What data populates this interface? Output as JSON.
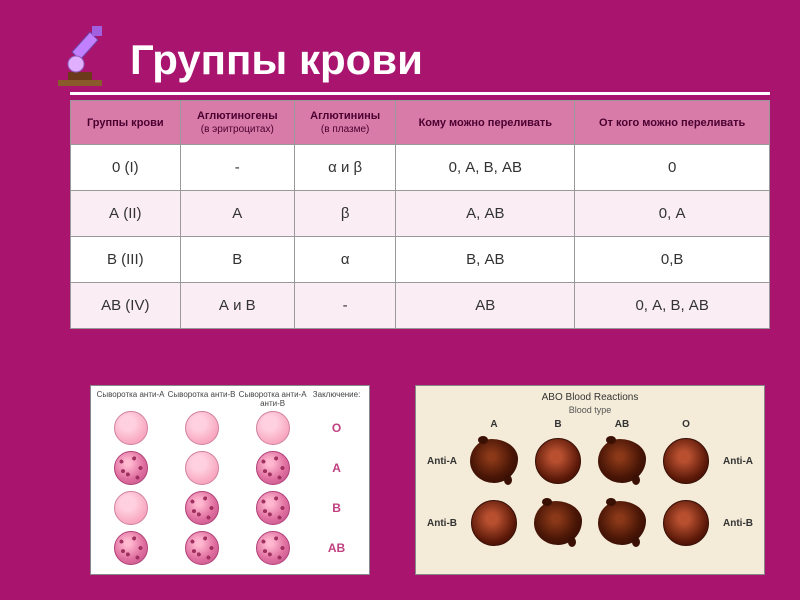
{
  "title": "Группы крови",
  "colors": {
    "page_bg": "#a8146e",
    "title_text": "#ffffff",
    "header_bg": "#d97ba8",
    "header_text": "#4a0030",
    "row_even_bg": "#faeef4",
    "row_odd_bg": "#ffffff",
    "cell_text": "#333333",
    "border": "#999999",
    "leftfig_smooth": "#f8a8c0",
    "leftfig_agg": "#c05088",
    "rightfig_bg": "#f4ecd8",
    "blot_smooth": "#5a1808",
    "blot_agg": "#4a1606"
  },
  "table": {
    "headers": {
      "c1": "Группы крови",
      "c2": "Аглютиногены",
      "c2sub": "(в эритроцитах)",
      "c3": "Аглютинины",
      "c3sub": "(в плазме)",
      "c4": "Кому можно переливать",
      "c5": "От кого можно переливать"
    },
    "rows": [
      {
        "group": "0 (I)",
        "agglutinogens": "-",
        "agglutinins": "α  и  β",
        "donate_to": "0, А, В, АВ",
        "receive_from": "0"
      },
      {
        "group": "А (II)",
        "agglutinogens": "А",
        "agglutinins": "β",
        "donate_to": "А, АВ",
        "receive_from": "0, А"
      },
      {
        "group": "В (III)",
        "agglutinogens": "В",
        "agglutinins": "α",
        "donate_to": "В, АВ",
        "receive_from": "0,В"
      },
      {
        "group": "АВ (IV)",
        "agglutinogens": "А и В",
        "agglutinins": "-",
        "donate_to": "АВ",
        "receive_from": "0, А, В, АВ"
      }
    ]
  },
  "left_figure": {
    "headers": {
      "h1": "Сыворотка анти-А",
      "h2": "Сыворотка анти-В",
      "h3": "Сыворотка анти-А анти-В",
      "h4": "Заключение:"
    },
    "rows": [
      {
        "pattern": [
          "smooth",
          "smooth",
          "smooth"
        ],
        "label": "O"
      },
      {
        "pattern": [
          "agg",
          "smooth",
          "agg"
        ],
        "label": "А"
      },
      {
        "pattern": [
          "smooth",
          "agg",
          "agg"
        ],
        "label": "В"
      },
      {
        "pattern": [
          "agg",
          "agg",
          "agg"
        ],
        "label": "АВ"
      }
    ]
  },
  "right_figure": {
    "title": "ABO Blood Reactions",
    "subtitle": "Blood type",
    "col_headers": [
      "A",
      "B",
      "AB",
      "O"
    ],
    "row_labels_left": [
      "Anti-A",
      "Anti-B"
    ],
    "row_labels_right": [
      "Anti-A",
      "Anti-B"
    ],
    "rows": [
      {
        "pattern": [
          "agg",
          "smooth",
          "agg",
          "smooth"
        ]
      },
      {
        "pattern": [
          "smooth",
          "agg",
          "agg",
          "smooth"
        ]
      }
    ]
  }
}
